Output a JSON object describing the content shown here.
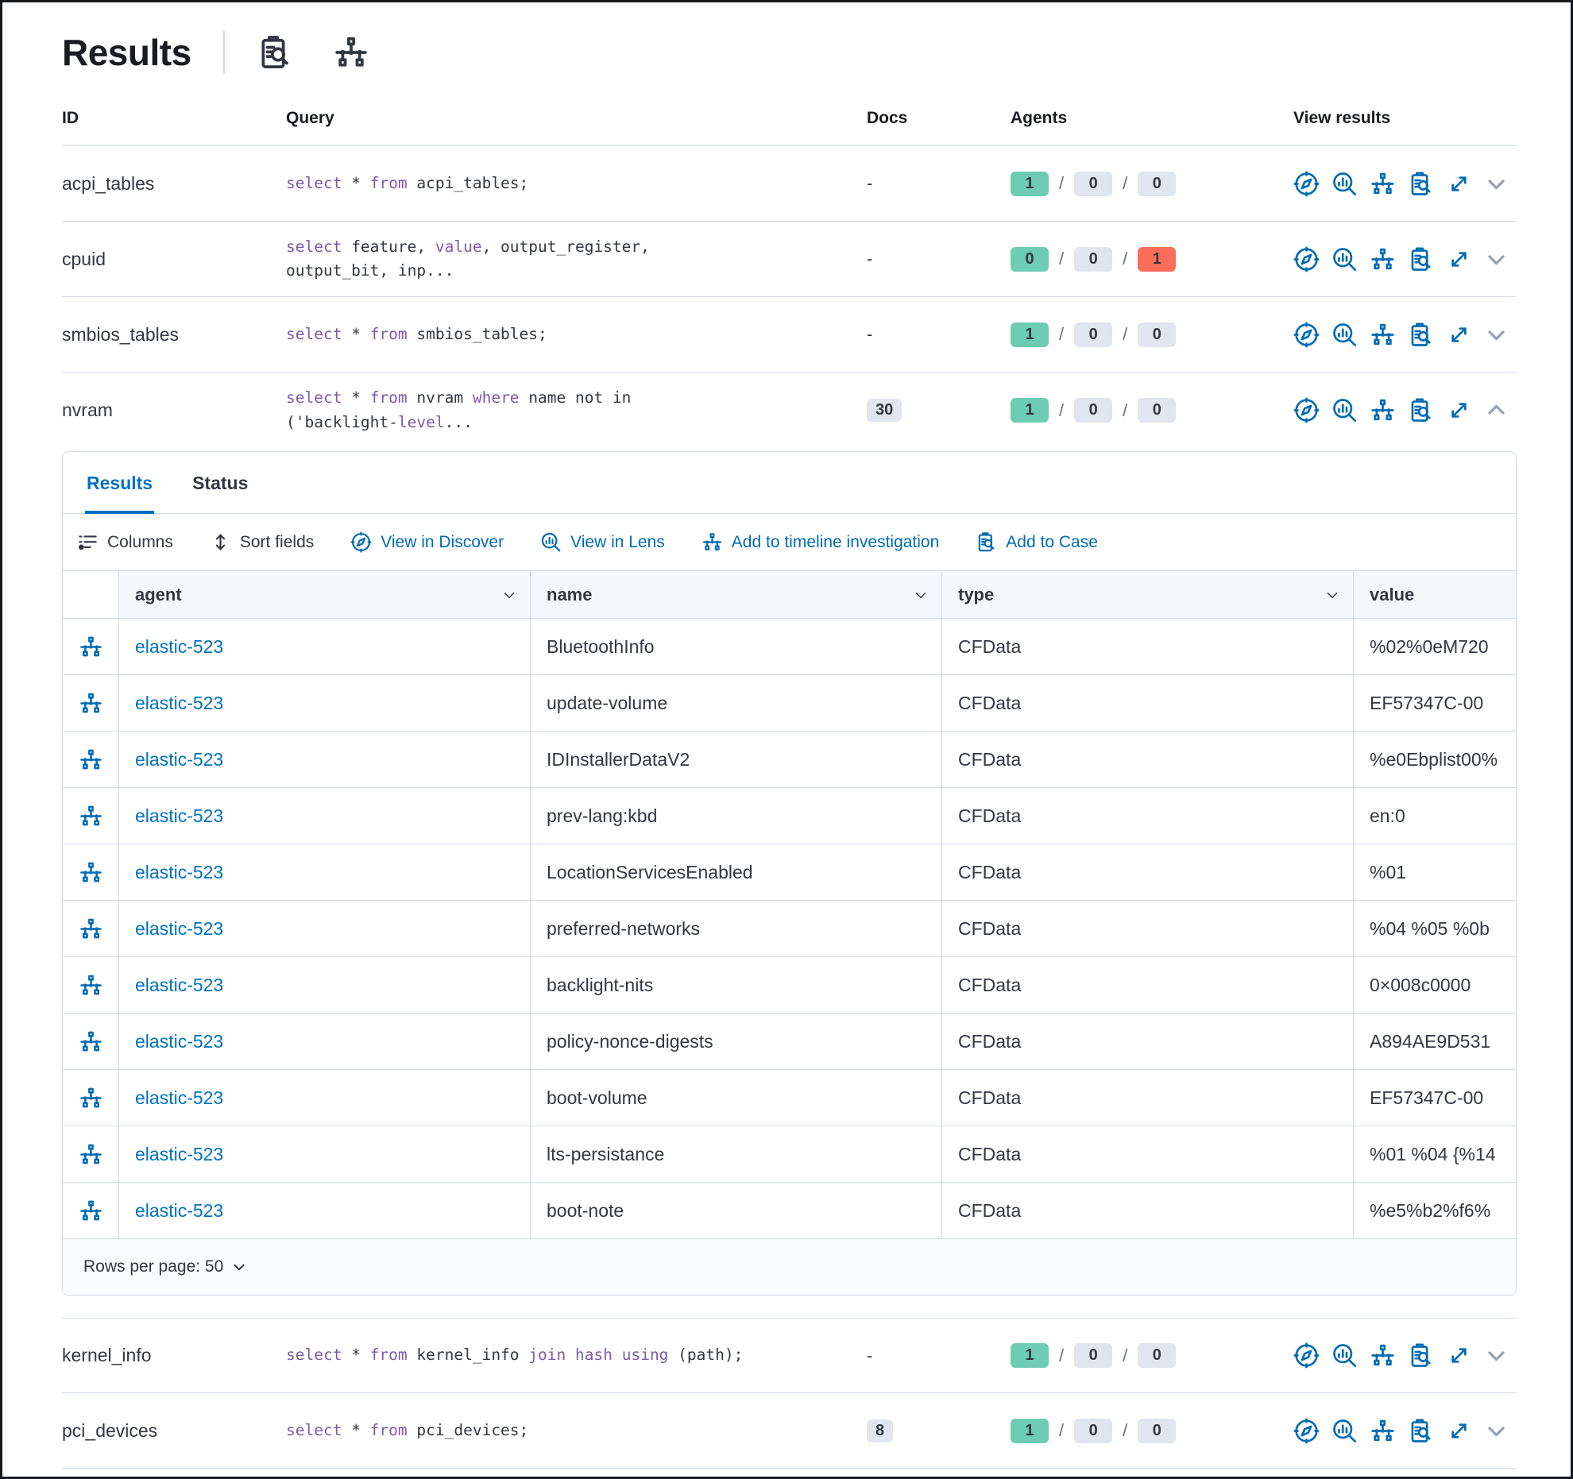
{
  "page": {
    "title": "Results"
  },
  "header_icons": [
    {
      "name": "inspect-icon"
    },
    {
      "name": "timeline-icon"
    }
  ],
  "table": {
    "columns": {
      "id": "ID",
      "query": "Query",
      "docs": "Docs",
      "agents": "Agents",
      "view_results": "View results"
    },
    "rows": [
      {
        "id": "acpi_tables",
        "query": [
          [
            "k",
            "select"
          ],
          [
            "t",
            " * "
          ],
          [
            "k",
            "from"
          ],
          [
            "t",
            " acpi_tables;"
          ]
        ],
        "docs": "-",
        "agents": {
          "success": 1,
          "pending": 0,
          "failed": 0
        },
        "expanded": false
      },
      {
        "id": "cpuid",
        "query": [
          [
            "k",
            "select"
          ],
          [
            "t",
            " feature, "
          ],
          [
            "k",
            "value"
          ],
          [
            "t",
            ", output_register,\noutput_bit, inp..."
          ]
        ],
        "docs": "-",
        "agents": {
          "success": 0,
          "pending": 0,
          "failed": 1
        },
        "expanded": false
      },
      {
        "id": "smbios_tables",
        "query": [
          [
            "k",
            "select"
          ],
          [
            "t",
            " * "
          ],
          [
            "k",
            "from"
          ],
          [
            "t",
            " smbios_tables;"
          ]
        ],
        "docs": "-",
        "agents": {
          "success": 1,
          "pending": 0,
          "failed": 0
        },
        "expanded": false
      },
      {
        "id": "nvram",
        "query": [
          [
            "k",
            "select"
          ],
          [
            "t",
            " * "
          ],
          [
            "k",
            "from"
          ],
          [
            "t",
            " nvram "
          ],
          [
            "k",
            "where"
          ],
          [
            "t",
            " name not in\n('backlight-"
          ],
          [
            "k",
            "level"
          ],
          [
            "t",
            "..."
          ]
        ],
        "docs": "30",
        "agents": {
          "success": 1,
          "pending": 0,
          "failed": 0
        },
        "expanded": true
      },
      {
        "id": "kernel_info",
        "query": [
          [
            "k",
            "select"
          ],
          [
            "t",
            " * "
          ],
          [
            "k",
            "from"
          ],
          [
            "t",
            " kernel_info "
          ],
          [
            "k",
            "join"
          ],
          [
            "t",
            " "
          ],
          [
            "k",
            "hash"
          ],
          [
            "t",
            " "
          ],
          [
            "k",
            "using"
          ],
          [
            "t",
            " (path);"
          ]
        ],
        "docs": "-",
        "agents": {
          "success": 1,
          "pending": 0,
          "failed": 0
        },
        "expanded": false
      },
      {
        "id": "pci_devices",
        "query": [
          [
            "k",
            "select"
          ],
          [
            "t",
            " * "
          ],
          [
            "k",
            "from"
          ],
          [
            "t",
            " pci_devices;"
          ]
        ],
        "docs": "8",
        "agents": {
          "success": 1,
          "pending": 0,
          "failed": 0
        },
        "expanded": false
      }
    ],
    "row_action_icons": [
      "discover-icon",
      "lens-icon",
      "timeline-icon",
      "case-icon",
      "expand-icon"
    ]
  },
  "panel": {
    "tabs": [
      {
        "label": "Results",
        "active": true
      },
      {
        "label": "Status",
        "active": false
      }
    ],
    "toolbar": [
      {
        "label": "Columns",
        "icon": "columns-icon",
        "style": "dark"
      },
      {
        "label": "Sort fields",
        "icon": "sort-icon",
        "style": "dark"
      },
      {
        "label": "View in Discover",
        "icon": "discover-icon",
        "style": "link"
      },
      {
        "label": "View in Lens",
        "icon": "lens-icon",
        "style": "link"
      },
      {
        "label": "Add to timeline investigation",
        "icon": "timeline-icon",
        "style": "link"
      },
      {
        "label": "Add to Case",
        "icon": "case-icon",
        "style": "link"
      }
    ],
    "grid": {
      "columns": [
        {
          "label": "agent",
          "sortable": true
        },
        {
          "label": "name",
          "sortable": true
        },
        {
          "label": "type",
          "sortable": true
        },
        {
          "label": "value",
          "sortable": false
        }
      ],
      "rows": [
        {
          "agent": "elastic-523",
          "name": "BluetoothInfo",
          "type": "CFData",
          "value": "%02%0eM720"
        },
        {
          "agent": "elastic-523",
          "name": "update-volume",
          "type": "CFData",
          "value": "EF57347C-00"
        },
        {
          "agent": "elastic-523",
          "name": "IDInstallerDataV2",
          "type": "CFData",
          "value": "%e0Ebplist00%"
        },
        {
          "agent": "elastic-523",
          "name": "prev-lang:kbd",
          "type": "CFData",
          "value": "en:0"
        },
        {
          "agent": "elastic-523",
          "name": "LocationServicesEnabled",
          "type": "CFData",
          "value": "%01"
        },
        {
          "agent": "elastic-523",
          "name": "preferred-networks",
          "type": "CFData",
          "value": "%04 %05 %0b"
        },
        {
          "agent": "elastic-523",
          "name": "backlight-nits",
          "type": "CFData",
          "value": "0×008c0000"
        },
        {
          "agent": "elastic-523",
          "name": "policy-nonce-digests",
          "type": "CFData",
          "value": "A894AE9D531"
        },
        {
          "agent": "elastic-523",
          "name": "boot-volume",
          "type": "CFData",
          "value": "EF57347C-00"
        },
        {
          "agent": "elastic-523",
          "name": "lts-persistance",
          "type": "CFData",
          "value": "%01 %04 {%14"
        },
        {
          "agent": "elastic-523",
          "name": "boot-note",
          "type": "CFData",
          "value": "%e5%b2%f6%"
        }
      ],
      "footer": {
        "rows_per_page_label": "Rows per page: 50"
      }
    }
  },
  "colors": {
    "link_blue": "#0071c2",
    "icon_blue": "#006bb4",
    "success_badge": "#6dccb1",
    "danger_badge": "#fc6e5a",
    "neutral_badge": "#e0e5ee",
    "keyword_purple": "#7d5ba6",
    "text": "#343741",
    "border": "#d3dae6"
  }
}
